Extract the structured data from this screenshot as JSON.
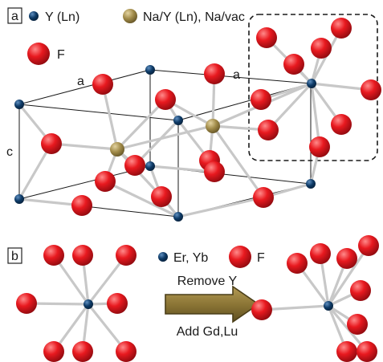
{
  "panel_a": {
    "label": "a",
    "legend": {
      "y_ln": "Y (Ln)",
      "na_y": "Na/Y (Ln), Na/vac",
      "f": "F"
    },
    "axis_a_left": "a",
    "axis_a_right": "a",
    "axis_c": "c"
  },
  "panel_b": {
    "label": "b",
    "legend": {
      "er_yb": "Er, Yb",
      "f": "F"
    },
    "arrow_top": "Remove Y",
    "arrow_bottom": "Add Gd,Lu"
  },
  "colors": {
    "fluorine": "#e8191f",
    "yttrium": "#0d3a66",
    "sodium": "#a08a48",
    "bond": "#c8c8c8",
    "arrow": "#8c7636"
  }
}
